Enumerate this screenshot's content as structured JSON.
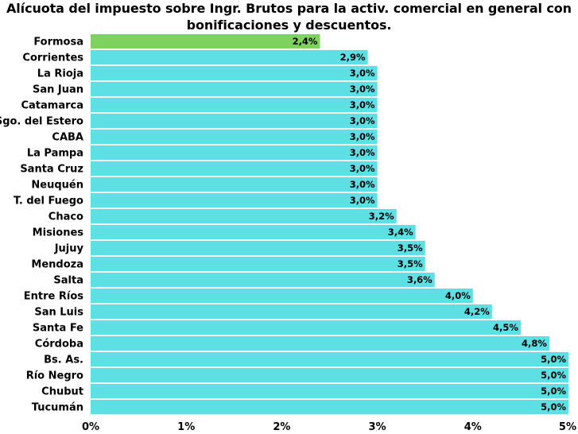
{
  "chart_data": {
    "type": "bar",
    "orientation": "horizontal",
    "title_line1": "Alícuota del impuesto sobre Ingr. Brutos para la activ. comercial en general con",
    "title_line2": "bonificaciones y descuentos.",
    "xlabel": "",
    "ylabel": "",
    "xlim": [
      0,
      5
    ],
    "grid": false,
    "legend": "none",
    "x_ticks": [
      0,
      1,
      2,
      3,
      4,
      5
    ],
    "x_tick_labels": [
      "0%",
      "1%",
      "2%",
      "3%",
      "4%",
      "5%"
    ],
    "categories": [
      "Formosa",
      "Corrientes",
      "La Rioja",
      "San Juan",
      "Catamarca",
      "Sgo. del Estero",
      "CABA",
      "La Pampa",
      "Santa Cruz",
      "Neuquén",
      "T. del Fuego",
      "Chaco",
      "Misiones",
      "Jujuy",
      "Mendoza",
      "Salta",
      "Entre Ríos",
      "San Luis",
      "Santa Fe",
      "Córdoba",
      "Bs. As.",
      "Río Negro",
      "Chubut",
      "Tucumán"
    ],
    "values": [
      2.4,
      2.9,
      3.0,
      3.0,
      3.0,
      3.0,
      3.0,
      3.0,
      3.0,
      3.0,
      3.0,
      3.2,
      3.4,
      3.5,
      3.5,
      3.6,
      4.0,
      4.2,
      4.5,
      4.8,
      5.0,
      5.0,
      5.0,
      5.0
    ],
    "value_labels": [
      "2,4%",
      "2,9%",
      "3,0%",
      "3,0%",
      "3,0%",
      "3,0%",
      "3,0%",
      "3,0%",
      "3,0%",
      "3,0%",
      "3,0%",
      "3,2%",
      "3,4%",
      "3,5%",
      "3,5%",
      "3,6%",
      "4,0%",
      "4,2%",
      "4,5%",
      "4,8%",
      "5,0%",
      "5,0%",
      "5,0%",
      "5,0%"
    ],
    "colors": {
      "default": "#5ddfe4",
      "highlight": "#7ed35f",
      "separator": "#ffffff"
    },
    "highlight_category": "Formosa"
  }
}
